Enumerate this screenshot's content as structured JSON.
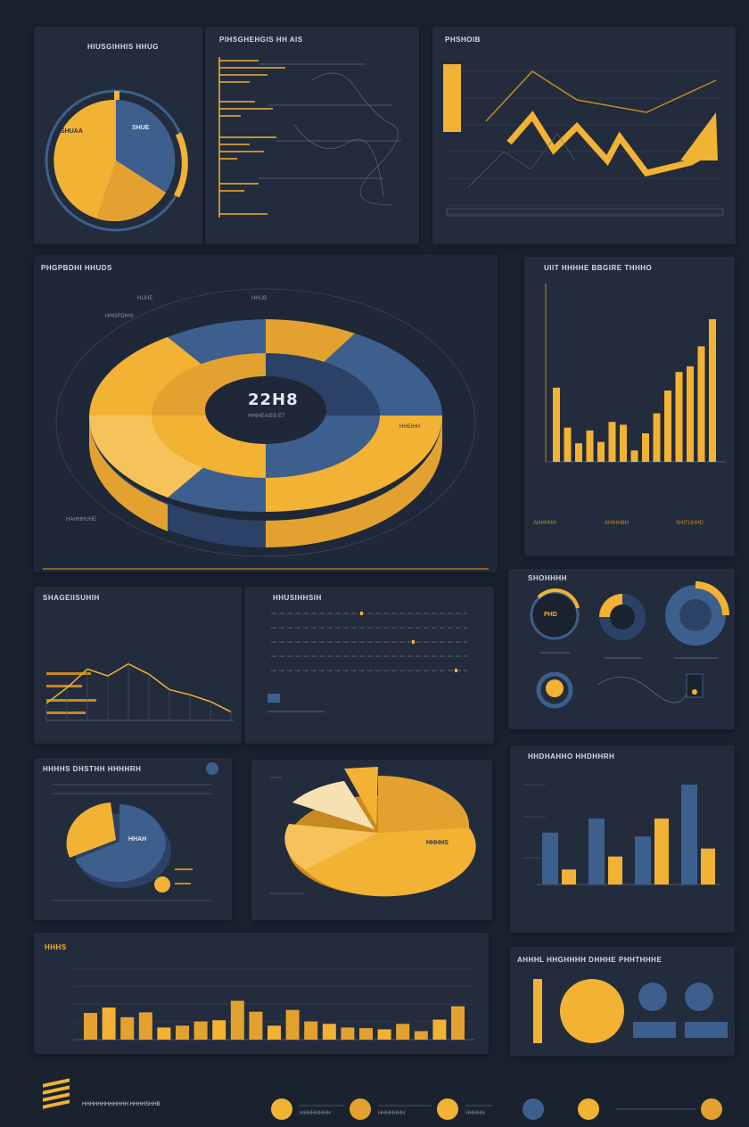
{
  "colors": {
    "background": "#1a2230",
    "panel": "#222c3d",
    "gold": "#f2b233",
    "gold_dark": "#c8891f",
    "blue": "#3d5f8e",
    "blue_dark": "#2b4266"
  },
  "panels": {
    "p1": {
      "title": "HIUSGIHHIS HHUG",
      "pie_label_gold": "SHUAA",
      "pie_label_blue": "SHUE"
    },
    "p2": {
      "title": "PIHSGHEHGIS HH AIS"
    },
    "p3": {
      "title": "PHSHOIB"
    },
    "p4": {
      "title": "PHGPBDHI HHUDS",
      "center_value": "22H8",
      "center_sub": "HHIHEAIES ET",
      "label_left": "HHGPDIHS",
      "label_top_a": "HIJHE",
      "label_top_b": "HHUB",
      "label_bottom": "HAHHHUHE",
      "label_right": "HHEIHH"
    },
    "p5": {
      "title": "UIIT HHHHE BBGIRE THHHO",
      "labels": [
        "AHHHHH",
        "AHIHHBH",
        "SHITUHHD"
      ]
    },
    "p6": {
      "title": "SHAGEIISUHIH"
    },
    "p7": {
      "title": "HHUSIHHSIH"
    },
    "p8": {
      "title": "SHOHHHH",
      "gauge_text": "PHD"
    },
    "p9": {
      "title": "HHHHS DHSTHH HHHHRH",
      "pie_label": "HHAH"
    },
    "p10": {
      "pie_label": "HHHHS"
    },
    "p11": {
      "title": "HHDHAHHO HHDHHRH"
    },
    "p12": {
      "title": "HHHS"
    },
    "p13": {
      "title": "AHHHL HHGHHHH DHHHE PHHTHHHE"
    }
  },
  "chart_data": [
    {
      "type": "bar",
      "title": "UIIT HHHHE BBGIRE THHHO",
      "values": [
        52,
        24,
        13,
        22,
        14,
        28,
        26,
        8,
        20,
        34,
        50,
        63,
        67,
        81,
        100
      ]
    },
    {
      "type": "bar",
      "title": "HHDHAHHO HHDHHRH",
      "series": [
        {
          "name": "blue",
          "values": [
            52,
            66,
            48,
            100
          ]
        },
        {
          "name": "gold",
          "values": [
            15,
            28,
            66,
            36
          ]
        }
      ]
    },
    {
      "type": "bar",
      "title": "HHHS",
      "values": [
        44,
        53,
        37,
        45,
        20,
        23,
        30,
        32,
        64,
        46,
        23,
        49,
        30,
        26,
        20,
        19,
        17,
        26,
        14,
        33,
        55
      ]
    },
    {
      "type": "line",
      "title": "PHSHOIB",
      "values": [
        80,
        62,
        84,
        60,
        86,
        42,
        72,
        35,
        58,
        75
      ]
    },
    {
      "type": "line",
      "title": "SHAGEIISUHIH",
      "values": [
        20,
        38,
        60,
        52,
        66,
        54,
        36,
        30,
        22,
        10
      ]
    }
  ],
  "footer": {
    "brand": "HHHHHHHHHHHH HHHHSHHB",
    "items": [
      "HHHHHHHH",
      "HHHHHHH",
      "HHHHH"
    ]
  }
}
